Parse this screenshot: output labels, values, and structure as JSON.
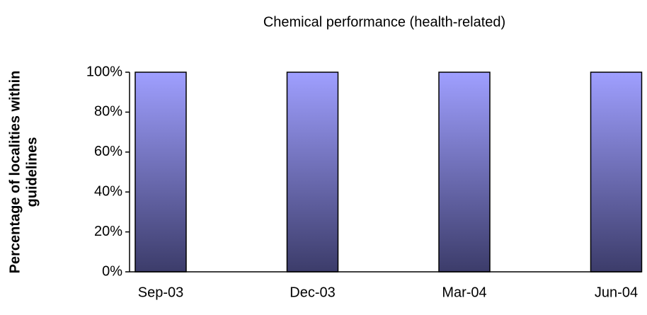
{
  "chart_data": {
    "type": "bar",
    "title": "Chemical performance (health-related)",
    "y_label": [
      "Percentage of localities within",
      "guidelines"
    ],
    "categories": [
      "Sep-03",
      "Dec-03",
      "Mar-04",
      "Jun-04"
    ],
    "values": [
      100,
      100,
      100,
      100
    ],
    "color": [
      "#9f9fff",
      "#3c3c6a"
    ],
    "ylim": [
      0,
      100
    ],
    "yticks": [
      {
        "value": 0,
        "label": "0%"
      },
      {
        "value": 20,
        "label": "20%"
      },
      {
        "value": 40,
        "label": "40%"
      },
      {
        "value": 60,
        "label": "60%"
      },
      {
        "value": 80,
        "label": "80%"
      },
      {
        "value": 100,
        "label": "100%"
      }
    ],
    "grid": false
  }
}
